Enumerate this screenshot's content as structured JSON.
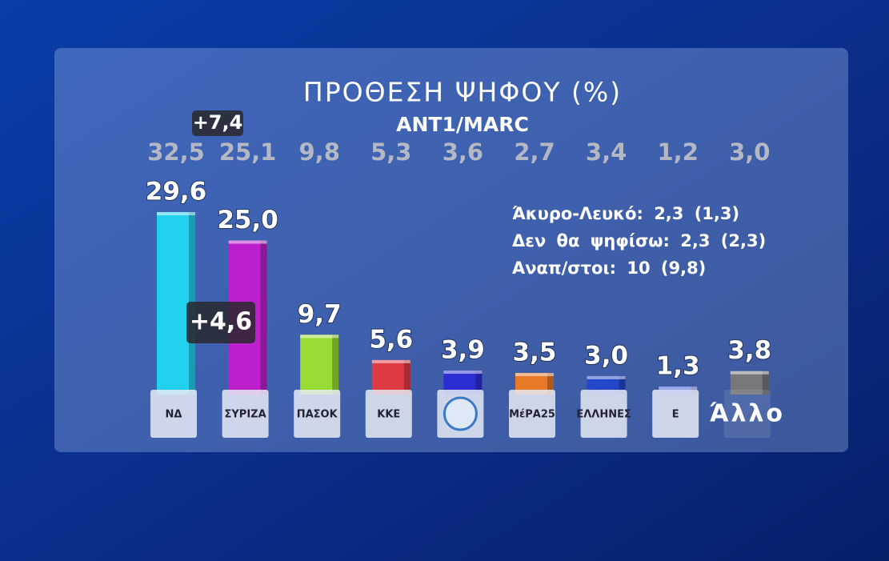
{
  "chart_data": {
    "type": "bar",
    "title": "ΠΡΟΘΕΣΗ ΨΗΦΟΥ (%)",
    "subtitle": "ANT1/MARC",
    "categories": [
      "ΝΔ",
      "ΣΥΡΙΖΑ",
      "ΠΑΣΟΚ",
      "ΚΚΕ",
      null,
      "ΜέΡΑ25",
      "ΕΛΛΗΝΕΣ",
      "Ε",
      "Άλλο"
    ],
    "values": [
      29.6,
      25.0,
      9.7,
      5.6,
      3.9,
      3.5,
      3.0,
      1.3,
      3.8
    ],
    "value_labels": [
      "29,6",
      "25,0",
      "9,7",
      "5,6",
      "3,9",
      "3,5",
      "3,0",
      "1,3",
      "3,8"
    ],
    "colors": [
      "#20d6f0",
      "#c21ccc",
      "#9ee32c",
      "#e8393c",
      "#2b2bd6",
      "#f07a22",
      "#2346cc",
      "#3349da",
      "#7a7a7a"
    ],
    "previous": {
      "values": [
        32.5,
        25.1,
        9.8,
        5.3,
        3.6,
        2.7,
        3.4,
        1.2,
        3.0
      ],
      "value_labels": [
        "32,5",
        "25,1",
        "9,8",
        "5,3",
        "3,6",
        "2,7",
        "3,4",
        "1,2",
        "3,0"
      ]
    },
    "annotations": [
      {
        "value": 7.4,
        "label": "+7,4"
      },
      {
        "value": 4.6,
        "label": "+4,6"
      }
    ],
    "notes": [
      "Άκυρο-Λευκό: 2,3 (1,3)",
      "Δεν θα ψηφίσω: 2,3 (2,3)",
      "Αναπ/στοι: 10 (9,8)"
    ]
  }
}
